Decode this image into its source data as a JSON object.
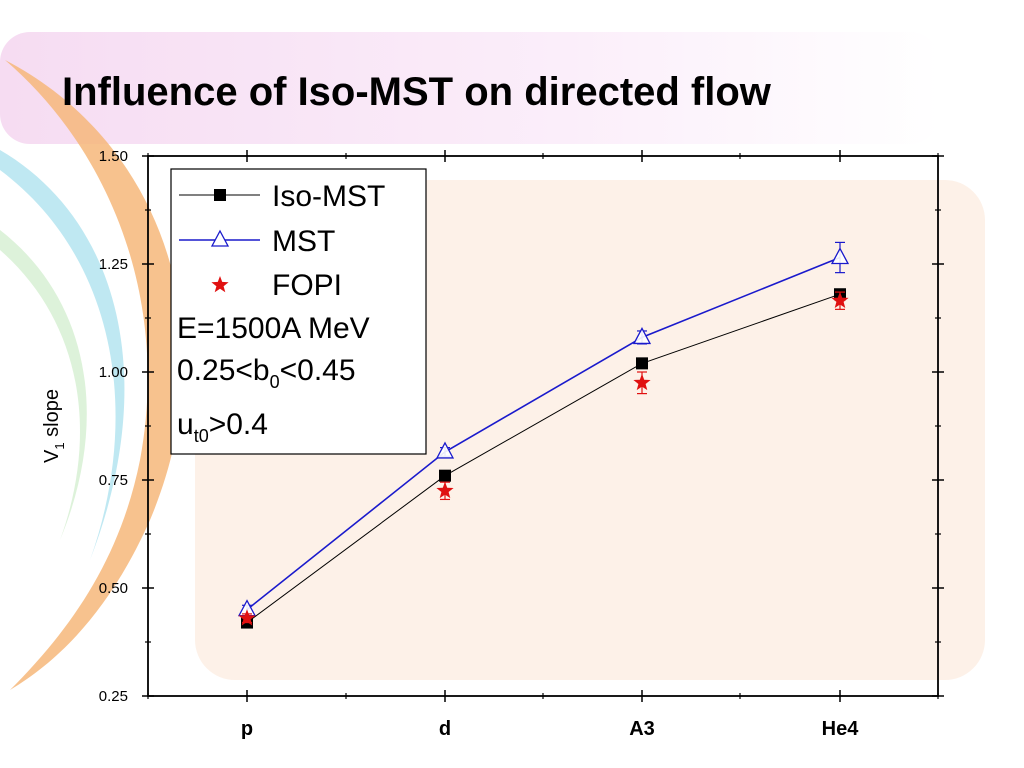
{
  "slide": {
    "title": "Influence of Iso-MST on directed flow"
  },
  "chart_data": {
    "type": "line",
    "title": "",
    "xlabel": "",
    "ylabel": "V",
    "ylabel_sub": "1",
    "ylabel_rest": " slope",
    "categories": [
      "p",
      "d",
      "A3",
      "He4"
    ],
    "ylim": [
      0.25,
      1.5
    ],
    "yticks": [
      "0.25",
      "0.50",
      "0.75",
      "1.00",
      "1.25",
      "1.50"
    ],
    "grid": false,
    "legend_position": "top-left",
    "series": [
      {
        "name": "Iso-MST",
        "marker": "square",
        "color": "#000000",
        "line": true,
        "values": [
          0.42,
          0.76,
          1.02,
          1.18
        ],
        "errors": [
          0.01,
          0.01,
          0.01,
          0.01
        ]
      },
      {
        "name": "MST",
        "marker": "triangle-open",
        "color": "#1a1acc",
        "line": true,
        "values": [
          0.45,
          0.815,
          1.08,
          1.265
        ],
        "errors": [
          0.01,
          0.01,
          0.015,
          0.035
        ]
      },
      {
        "name": "FOPI",
        "marker": "star",
        "color": "#e01010",
        "line": false,
        "values": [
          0.43,
          0.725,
          0.975,
          1.165
        ],
        "errors": [
          0.01,
          0.02,
          0.025,
          0.02
        ]
      }
    ],
    "annotations": {
      "energy": "E=1500A MeV",
      "b_pre": "0.25<b",
      "b_sub": "0",
      "b_post": "<0.45",
      "u_pre": "u",
      "u_sub": "t0",
      "u_post": ">0.4"
    }
  }
}
